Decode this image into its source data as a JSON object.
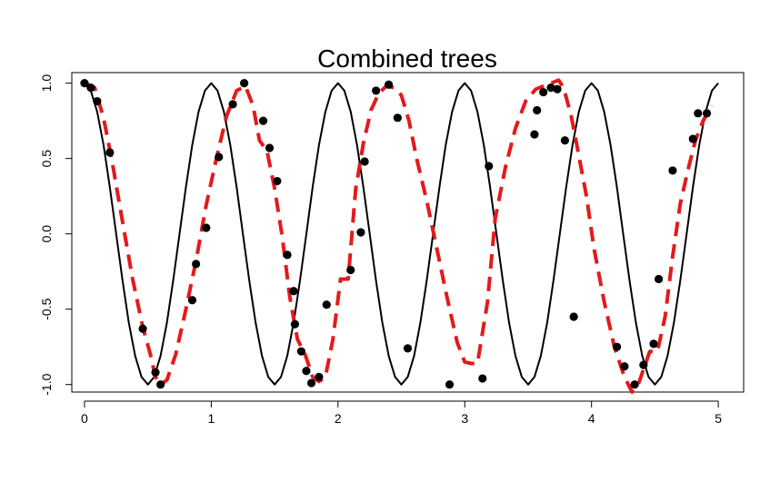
{
  "chart_data": {
    "type": "line",
    "title": "Combined trees",
    "xlabel": "",
    "ylabel": "",
    "xlim": [
      -0.1,
      5.2
    ],
    "ylim": [
      -1.05,
      1.07
    ],
    "x_ticks": [
      0,
      1,
      2,
      3,
      4,
      5
    ],
    "x_tick_labels": [
      "0",
      "1",
      "2",
      "3",
      "4",
      "5"
    ],
    "y_ticks": [
      -1.0,
      -0.5,
      0.0,
      0.5,
      1.0
    ],
    "y_tick_labels": [
      "-1.0",
      "-0.5",
      "0.0",
      "0.5",
      "1.0"
    ],
    "grid": false,
    "legend": "none",
    "series": [
      {
        "style": "solid",
        "color": "#000000",
        "x": [
          0,
          0.05,
          0.1,
          0.15,
          0.2,
          0.25,
          0.3,
          0.35,
          0.4,
          0.45,
          0.5,
          0.55,
          0.6,
          0.65,
          0.7,
          0.75,
          0.8,
          0.85,
          0.9,
          0.95,
          1.0,
          1.05,
          1.1,
          1.15,
          1.2,
          1.25,
          1.3,
          1.35,
          1.4,
          1.45,
          1.5,
          1.55,
          1.6,
          1.65,
          1.7,
          1.75,
          1.8,
          1.85,
          1.9,
          1.95,
          2.0,
          2.05,
          2.1,
          2.15,
          2.2,
          2.25,
          2.3,
          2.35,
          2.4,
          2.45,
          2.5,
          2.55,
          2.6,
          2.65,
          2.7,
          2.75,
          2.8,
          2.85,
          2.9,
          2.95,
          3.0,
          3.05,
          3.1,
          3.15,
          3.2,
          3.25,
          3.3,
          3.35,
          3.4,
          3.45,
          3.5,
          3.55,
          3.6,
          3.65,
          3.7,
          3.75,
          3.8,
          3.85,
          3.9,
          3.95,
          4.0,
          4.05,
          4.1,
          4.15,
          4.2,
          4.25,
          4.3,
          4.35,
          4.4,
          4.45,
          4.5,
          4.55,
          4.6,
          4.65,
          4.7,
          4.75,
          4.8,
          4.85,
          4.9,
          4.95,
          5.0
        ],
        "y": [
          1.0,
          0.95,
          0.81,
          0.59,
          0.31,
          0.0,
          -0.31,
          -0.59,
          -0.81,
          -0.95,
          -1.0,
          -0.95,
          -0.81,
          -0.59,
          -0.31,
          0.0,
          0.31,
          0.59,
          0.81,
          0.95,
          1.0,
          0.95,
          0.81,
          0.59,
          0.31,
          0.0,
          -0.31,
          -0.59,
          -0.81,
          -0.95,
          -1.0,
          -0.95,
          -0.81,
          -0.59,
          -0.31,
          0.0,
          0.31,
          0.59,
          0.81,
          0.95,
          1.0,
          0.95,
          0.81,
          0.59,
          0.31,
          0.0,
          -0.31,
          -0.59,
          -0.81,
          -0.95,
          -1.0,
          -0.95,
          -0.81,
          -0.59,
          -0.31,
          0.0,
          0.31,
          0.59,
          0.81,
          0.95,
          1.0,
          0.95,
          0.81,
          0.59,
          0.31,
          0.0,
          -0.31,
          -0.59,
          -0.81,
          -0.95,
          -1.0,
          -0.95,
          -0.81,
          -0.59,
          -0.31,
          0.0,
          0.31,
          0.59,
          0.81,
          0.95,
          1.0,
          0.95,
          0.81,
          0.59,
          0.31,
          0.0,
          -0.31,
          -0.59,
          -0.81,
          -0.95,
          -1.0,
          -0.95,
          -0.81,
          -0.59,
          -0.31,
          0.0,
          0.31,
          0.59,
          0.81,
          0.95,
          1.0
        ]
      },
      {
        "style": "dashed",
        "color": "#e31a1c",
        "x": [
          0.0,
          0.08,
          0.15,
          0.22,
          0.3,
          0.38,
          0.46,
          0.52,
          0.56,
          0.6,
          0.65,
          0.72,
          0.8,
          0.88,
          0.96,
          1.04,
          1.12,
          1.2,
          1.27,
          1.33,
          1.38,
          1.44,
          1.5,
          1.56,
          1.62,
          1.68,
          1.74,
          1.8,
          1.85,
          1.9,
          1.96,
          2.02,
          2.08,
          2.14,
          2.2,
          2.26,
          2.32,
          2.38,
          2.44,
          2.5,
          2.56,
          2.62,
          2.7,
          2.78,
          2.86,
          2.94,
          3.0,
          3.05,
          3.1,
          3.18,
          3.24,
          3.32,
          3.4,
          3.48,
          3.56,
          3.62,
          3.68,
          3.74,
          3.78,
          3.84,
          3.9,
          3.96,
          4.02,
          4.1,
          4.18,
          4.26,
          4.32,
          4.36,
          4.41,
          4.46,
          4.52,
          4.58,
          4.64,
          4.7,
          4.76,
          4.82,
          4.88,
          4.95
        ],
        "y": [
          1.0,
          0.97,
          0.77,
          0.47,
          0.08,
          -0.3,
          -0.62,
          -0.8,
          -0.95,
          -1.0,
          -0.97,
          -0.8,
          -0.5,
          -0.18,
          0.19,
          0.5,
          0.78,
          0.95,
          0.98,
          0.85,
          0.62,
          0.55,
          0.3,
          -0.02,
          -0.42,
          -0.7,
          -0.8,
          -0.95,
          -0.98,
          -0.95,
          -0.7,
          -0.3,
          -0.3,
          0.3,
          0.6,
          0.82,
          0.93,
          0.98,
          0.97,
          0.92,
          0.75,
          0.5,
          0.22,
          -0.1,
          -0.42,
          -0.72,
          -0.85,
          -0.86,
          -0.86,
          -0.45,
          0.1,
          0.44,
          0.7,
          0.88,
          0.96,
          0.98,
          1.0,
          1.02,
          0.97,
          0.78,
          0.52,
          0.25,
          -0.1,
          -0.45,
          -0.75,
          -0.95,
          -1.05,
          -1.02,
          -0.9,
          -0.78,
          -0.78,
          -0.55,
          -0.15,
          0.2,
          0.42,
          0.62,
          0.75,
          0.85
        ]
      },
      {
        "style": "points",
        "color": "#000000",
        "x": [
          0.0,
          0.05,
          0.1,
          0.2,
          0.46,
          0.56,
          0.6,
          0.85,
          0.88,
          0.96,
          1.06,
          1.17,
          1.26,
          1.41,
          1.46,
          1.52,
          1.6,
          1.65,
          1.66,
          1.71,
          1.75,
          1.79,
          1.85,
          1.91,
          2.1,
          2.18,
          2.21,
          2.3,
          2.4,
          2.47,
          2.55,
          2.88,
          3.14,
          3.19,
          3.55,
          3.57,
          3.62,
          3.68,
          3.73,
          3.79,
          3.86,
          4.2,
          4.26,
          4.34,
          4.41,
          4.49,
          4.53,
          4.64,
          4.8,
          4.84,
          4.91
        ],
        "y": [
          1.0,
          0.97,
          0.88,
          0.54,
          -0.63,
          -0.92,
          -1.0,
          -0.44,
          -0.2,
          0.04,
          0.51,
          0.86,
          1.0,
          0.75,
          0.57,
          0.35,
          -0.14,
          -0.38,
          -0.6,
          -0.78,
          -0.91,
          -0.99,
          -0.95,
          -0.47,
          -0.24,
          0.01,
          0.48,
          0.95,
          0.99,
          0.77,
          -0.76,
          -1.0,
          -0.96,
          0.45,
          0.66,
          0.82,
          0.94,
          0.97,
          0.96,
          0.62,
          -0.55,
          -0.75,
          -0.88,
          -1.0,
          -0.87,
          -0.73,
          -0.3,
          0.42,
          0.63,
          0.8,
          0.8
        ]
      }
    ]
  }
}
